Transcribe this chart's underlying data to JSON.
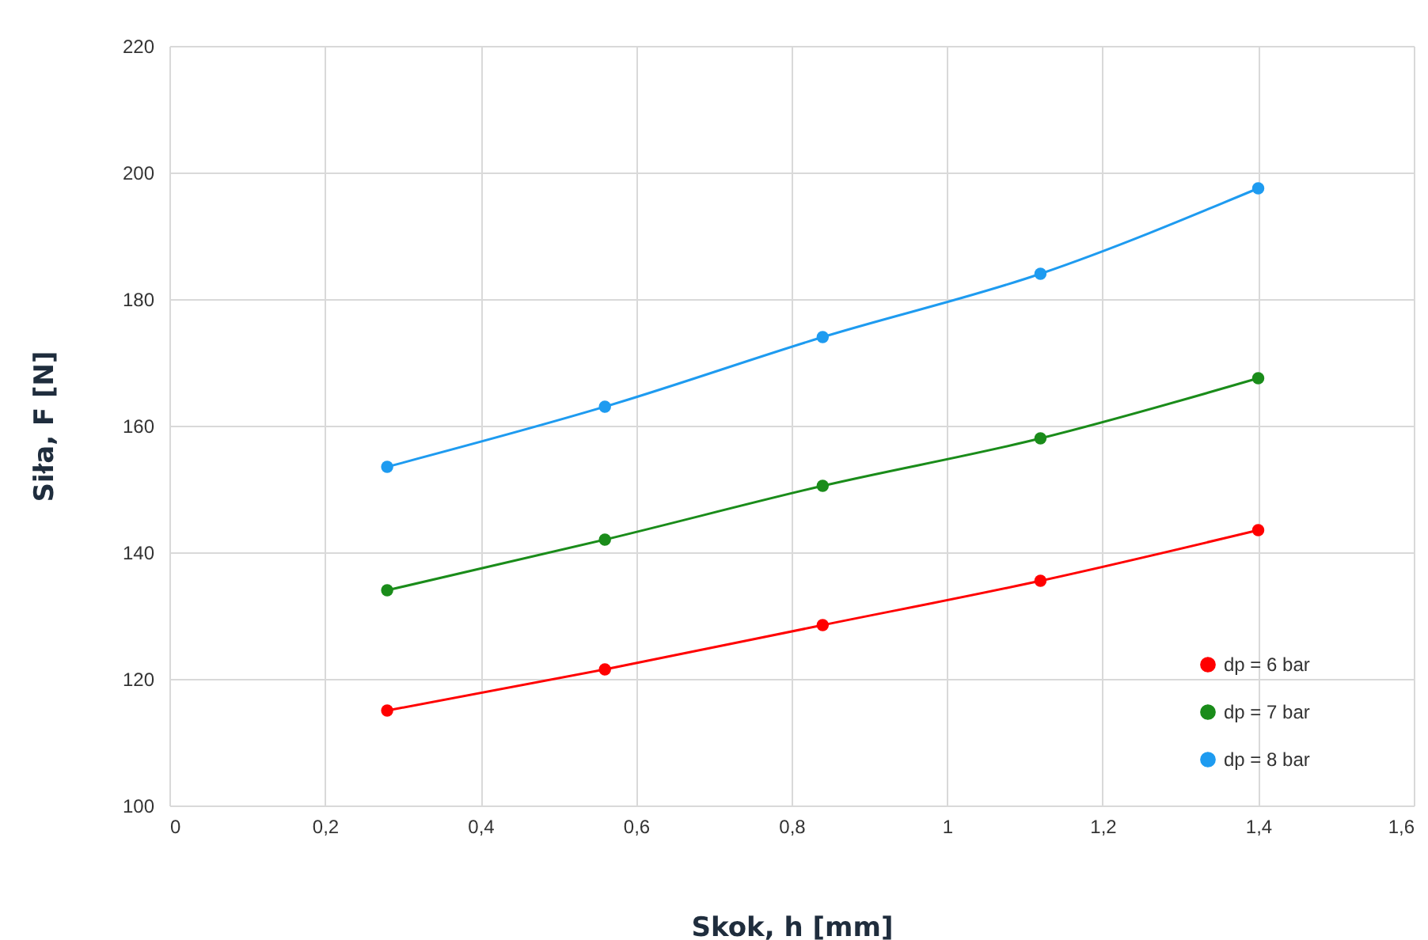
{
  "chart_data": {
    "type": "line",
    "xlabel": "Skok, h [mm]",
    "ylabel": "Siła, F [N]",
    "x": [
      0.28,
      0.56,
      0.84,
      1.12,
      1.4
    ],
    "series": [
      {
        "name": "dp = 6 bar",
        "color": "#ff0000",
        "values": [
          115,
          121.5,
          128.5,
          135.5,
          143.5
        ]
      },
      {
        "name": "dp = 7 bar",
        "color": "#1a8c1a",
        "values": [
          134,
          142,
          150.5,
          158,
          167.5
        ]
      },
      {
        "name": "dp = 8 bar",
        "color": "#1e9bf0",
        "values": [
          153.5,
          163,
          174,
          184,
          197.5
        ]
      }
    ],
    "xlim": [
      0,
      1.6
    ],
    "xticks": [
      0,
      {
        "value": 0.2,
        "label": "0,2"
      },
      {
        "value": 0.4,
        "label": "0,4"
      },
      {
        "value": 0.6,
        "label": "0,6"
      },
      {
        "value": 0.8,
        "label": "0,8"
      },
      1,
      {
        "value": 1.2,
        "label": "1,2"
      },
      {
        "value": 1.4,
        "label": "1,4"
      },
      {
        "value": 1.6,
        "label": "1,6"
      }
    ],
    "ylim": [
      100,
      220
    ],
    "yticks": [
      100,
      120,
      140,
      160,
      180,
      200,
      220
    ],
    "grid": true,
    "legend": "bottom right",
    "marker": "circle",
    "line_style": "solid"
  }
}
